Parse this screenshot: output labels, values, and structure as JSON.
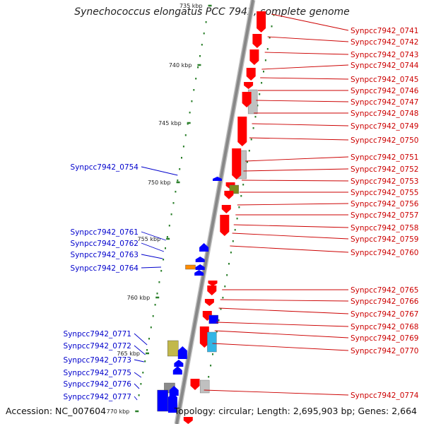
{
  "title": "Synechococcus elongatus PCC 7942, complete genome",
  "accession": "Accession: NC_007604",
  "summary": "Topology: circular; Length: 2,695,903 bp; Genes: 2,664",
  "colors": {
    "forward_cds": "#ff0000",
    "reverse_cds": "#0000ff",
    "other_gene": "#c0c0c0",
    "rrna": "#7b8c1e",
    "trna": "#ff8c00",
    "misc": "#33b5e5",
    "backbone": "#888888",
    "tick": "#2a7f2a",
    "label_forward": "#cc0000",
    "label_reverse": "#0000cc"
  },
  "scale": [
    {
      "label": "735 kbp"
    },
    {
      "label": "740 kbp"
    },
    {
      "label": "745 kbp"
    },
    {
      "label": "750 kbp"
    },
    {
      "label": "755 kbp"
    },
    {
      "label": "760 kbp"
    },
    {
      "label": "765 kbp"
    },
    {
      "label": "770 kbp"
    }
  ],
  "forward_labels": [
    "Synpcc7942_0741",
    "Synpcc7942_0742",
    "Synpcc7942_0743",
    "Synpcc7942_0744",
    "Synpcc7942_0745",
    "Synpcc7942_0746",
    "Synpcc7942_0747",
    "Synpcc7942_0748",
    "Synpcc7942_0749",
    "Synpcc7942_0750",
    "Synpcc7942_0751",
    "Synpcc7942_0752",
    "Synpcc7942_0753",
    "Synpcc7942_0755",
    "Synpcc7942_0756",
    "Synpcc7942_0757",
    "Synpcc7942_0758",
    "Synpcc7942_0759",
    "Synpcc7942_0760",
    "Synpcc7942_0765",
    "Synpcc7942_0766",
    "Synpcc7942_0767",
    "Synpcc7942_0768",
    "Synpcc7942_0769",
    "Synpcc7942_0770",
    "Synpcc7942_0774"
  ],
  "reverse_labels": [
    "Synpcc7942_0754",
    "Synpcc7942_0761",
    "Synpcc7942_0762",
    "Synpcc7942_0763",
    "Synpcc7942_0764",
    "Synpcc7942_0771",
    "Synpcc7942_0772",
    "Synpcc7942_0773",
    "Synpcc7942_0775",
    "Synpcc7942_0776",
    "Synpcc7942_0777"
  ]
}
